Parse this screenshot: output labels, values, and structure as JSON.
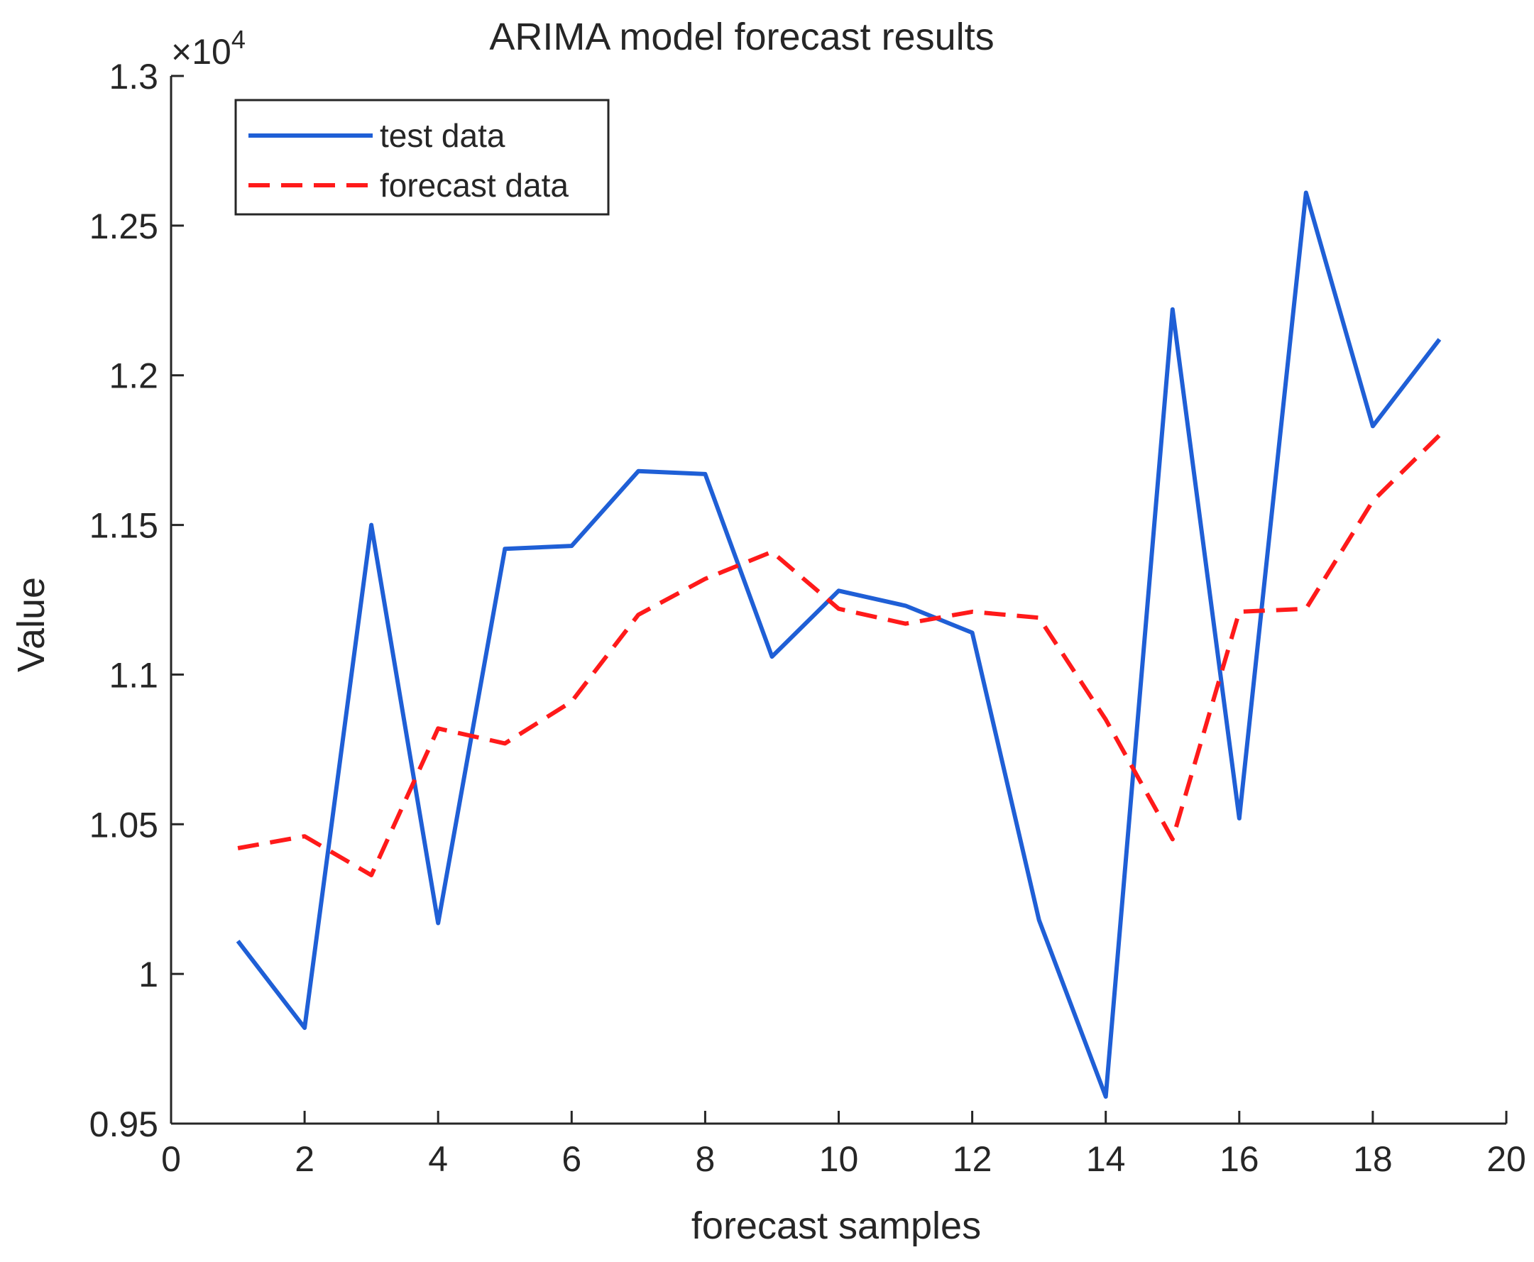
{
  "chart_data": {
    "type": "line",
    "title": "ARIMA model forecast results",
    "xlabel": "forecast samples",
    "ylabel": "Value",
    "xlim": [
      0,
      20
    ],
    "ylim": [
      0.95,
      1.3
    ],
    "x_ticks": [
      "0",
      "2",
      "4",
      "6",
      "8",
      "10",
      "12",
      "14",
      "16",
      "18",
      "20"
    ],
    "y_ticks": [
      "0.95",
      "1",
      "1.05",
      "1.1",
      "1.15",
      "1.2",
      "1.25",
      "1.3"
    ],
    "y_exponent_label": "×10",
    "y_exponent_power": "4",
    "legend_position": "top-left",
    "series": [
      {
        "name": "test data",
        "color": "#1f5fd6",
        "style": "solid",
        "x": [
          1,
          2,
          3,
          4,
          5,
          6,
          7,
          8,
          9,
          10,
          11,
          12,
          13,
          14,
          15,
          16,
          17,
          18,
          19
        ],
        "values": [
          1.011,
          0.982,
          1.15,
          1.017,
          1.142,
          1.143,
          1.168,
          1.167,
          1.106,
          1.128,
          1.123,
          1.114,
          1.018,
          0.959,
          1.222,
          1.052,
          1.261,
          1.183,
          1.212
        ]
      },
      {
        "name": "forecast data",
        "color": "#ff1a1a",
        "style": "dashed",
        "x": [
          1,
          2,
          3,
          4,
          5,
          6,
          7,
          8,
          9,
          10,
          11,
          12,
          13,
          14,
          15,
          16,
          17,
          18,
          19
        ],
        "values": [
          1.042,
          1.046,
          1.033,
          1.082,
          1.077,
          1.091,
          1.12,
          1.132,
          1.141,
          1.122,
          1.117,
          1.121,
          1.119,
          1.085,
          1.045,
          1.121,
          1.122,
          1.158,
          1.18
        ]
      }
    ]
  }
}
